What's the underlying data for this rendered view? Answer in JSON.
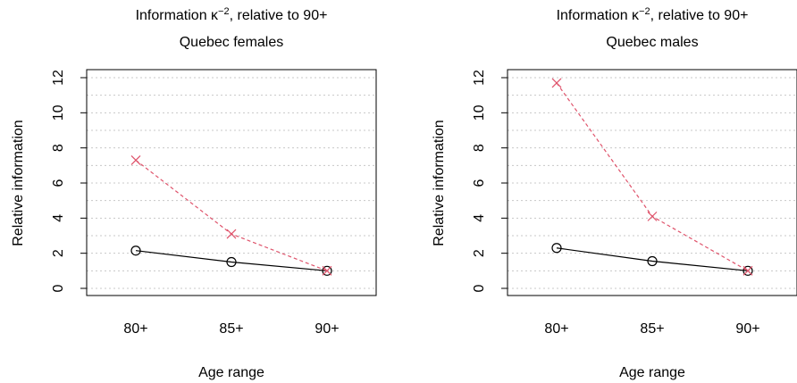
{
  "chart_data": [
    {
      "type": "line",
      "title": "Information κ⁻², relative to 90+",
      "title_main": "Information κ",
      "title_sup": "−2",
      "title_rest": ", relative to 90+",
      "subtitle": "Quebec females",
      "xlabel": "Age range",
      "ylabel": "Relative information",
      "categories": [
        "80+",
        "85+",
        "90+"
      ],
      "ylim": [
        0,
        12
      ],
      "yticks": [
        0,
        2,
        4,
        6,
        8,
        10,
        12
      ],
      "grid": true,
      "series": [
        {
          "values": [
            2.15,
            1.5,
            1.0
          ],
          "color": "#000000",
          "style": "solid",
          "marker": "circle"
        },
        {
          "values": [
            7.3,
            3.1,
            1.0
          ],
          "color": "#DF536B",
          "style": "dashed",
          "marker": "cross"
        }
      ]
    },
    {
      "type": "line",
      "title": "Information κ⁻², relative to 90+",
      "title_main": "Information κ",
      "title_sup": "−2",
      "title_rest": ", relative to 90+",
      "subtitle": "Quebec males",
      "xlabel": "Age range",
      "ylabel": "Relative information",
      "categories": [
        "80+",
        "85+",
        "90+"
      ],
      "ylim": [
        0,
        12
      ],
      "yticks": [
        0,
        2,
        4,
        6,
        8,
        10,
        12
      ],
      "grid": true,
      "series": [
        {
          "values": [
            2.3,
            1.55,
            1.0
          ],
          "color": "#000000",
          "style": "solid",
          "marker": "circle"
        },
        {
          "values": [
            11.7,
            4.1,
            1.0
          ],
          "color": "#DF536B",
          "style": "dashed",
          "marker": "cross"
        }
      ]
    }
  ]
}
